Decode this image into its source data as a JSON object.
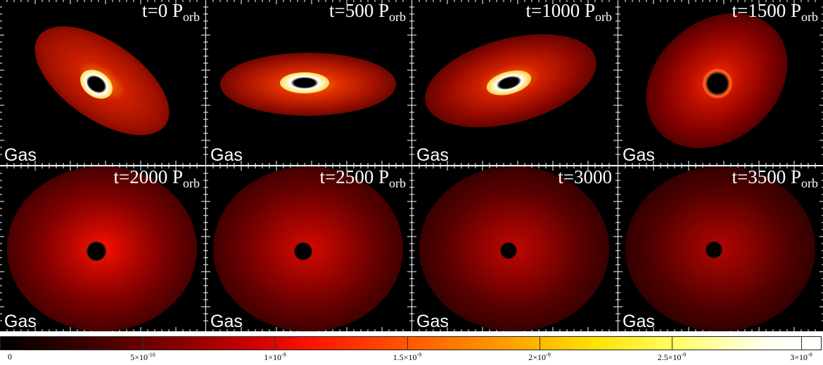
{
  "panels": [
    {
      "time_label": "t=0 P",
      "time_sub": "orb",
      "species": "Gas"
    },
    {
      "time_label": "t=500 P",
      "time_sub": "orb",
      "species": "Gas"
    },
    {
      "time_label": "t=1000 P",
      "time_sub": "orb",
      "species": "Gas"
    },
    {
      "time_label": "t=1500 P",
      "time_sub": "orb",
      "species": "Gas"
    },
    {
      "time_label": "t=2000 P",
      "time_sub": "orb",
      "species": "Gas"
    },
    {
      "time_label": "t=2500 P",
      "time_sub": "orb",
      "species": "Gas"
    },
    {
      "time_label": "t=3000",
      "time_sub": "",
      "species": "Gas"
    },
    {
      "time_label": "t=3500 P",
      "time_sub": "orb",
      "species": "Gas"
    }
  ],
  "colorbar": {
    "colormap": "black-red-yellow-white",
    "ticks": [
      {
        "base": "0",
        "exp": ""
      },
      {
        "base": "5×10",
        "exp": "-10"
      },
      {
        "base": "1×10",
        "exp": "-9"
      },
      {
        "base": "1.5×10",
        "exp": "-9"
      },
      {
        "base": "2×10",
        "exp": "-9"
      },
      {
        "base": "2.5×10",
        "exp": "-9"
      },
      {
        "base": "3×10",
        "exp": "-9"
      }
    ]
  }
}
